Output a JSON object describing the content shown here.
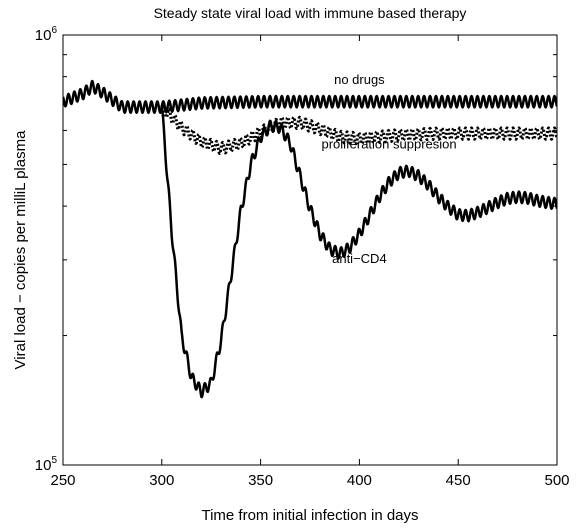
{
  "chart_data": {
    "type": "line",
    "title": "Steady state viral load with immune based therapy",
    "xlabel": "Time from initial infection in days",
    "ylabel": "Viral load − copies per milliL plasma",
    "xlim": [
      250,
      500
    ],
    "ylim": [
      100000,
      1000000
    ],
    "yscale": "log",
    "grid": false,
    "legend": "none",
    "x_ticks": [
      250,
      300,
      350,
      400,
      450,
      500
    ],
    "x_tick_labels": [
      "250",
      "300",
      "350",
      "400",
      "450",
      "500"
    ],
    "y_ticks": [
      100000,
      1000000
    ],
    "y_tick_labels": [
      {
        "base": "10",
        "exp": "5"
      },
      {
        "base": "10",
        "exp": "6"
      }
    ],
    "annotations": [
      {
        "text": "no drugs",
        "x": 400,
        "y": 770000
      },
      {
        "text": "proliferation suppresion",
        "x": 415,
        "y": 545000
      },
      {
        "text": "anti−CD4",
        "x": 400,
        "y": 295000
      }
    ],
    "series": [
      {
        "style": "solid",
        "color": "#000000",
        "x": [
          250,
          260,
          265,
          270,
          280,
          290,
          300,
          320,
          350,
          400,
          450,
          500
        ],
        "y": [
          700000,
          730000,
          760000,
          735000,
          680000,
          680000,
          680000,
          695000,
          700000,
          700000,
          700000,
          700000
        ]
      },
      {
        "style": "dotted",
        "color": "#000000",
        "x": [
          300,
          310,
          320,
          330,
          340,
          350,
          360,
          370,
          380,
          390,
          400,
          420,
          440,
          460,
          480,
          500
        ],
        "y": [
          680000,
          610000,
          565000,
          545000,
          560000,
          595000,
          625000,
          625000,
          605000,
          580000,
          575000,
          585000,
          590000,
          590000,
          590000,
          590000
        ]
      },
      {
        "style": "solid",
        "color": "#000000",
        "x": [
          300,
          305,
          310,
          315,
          320,
          325,
          330,
          335,
          340,
          345,
          350,
          355,
          360,
          365,
          370,
          375,
          380,
          385,
          390,
          395,
          400,
          405,
          410,
          415,
          420,
          425,
          430,
          435,
          440,
          445,
          450,
          455,
          460,
          465,
          470,
          475,
          480,
          485,
          490,
          495,
          500
        ],
        "y": [
          680000,
          350000,
          200000,
          160000,
          148000,
          155000,
          195000,
          275000,
          390000,
          500000,
          580000,
          615000,
          610000,
          560000,
          470000,
          395000,
          345000,
          318000,
          310000,
          320000,
          345000,
          380000,
          420000,
          455000,
          478000,
          483000,
          470000,
          448000,
          420000,
          398000,
          382000,
          380000,
          387000,
          397000,
          408000,
          417000,
          420000,
          418000,
          412000,
          408000,
          405000
        ]
      }
    ]
  }
}
